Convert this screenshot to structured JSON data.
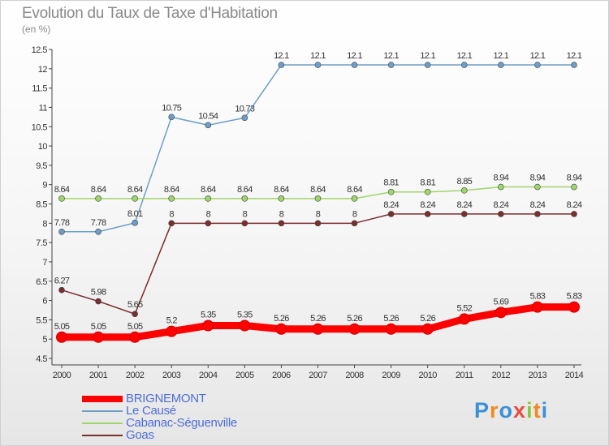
{
  "title": "Evolution du Taux de Taxe d'Habitation",
  "subtitle": "(en %)",
  "logo": {
    "text": "Proxiti"
  },
  "chart_data": {
    "type": "line",
    "title": "Evolution du Taux de Taxe d'Habitation",
    "ylabel": "(en %)",
    "xlabel": "",
    "ylim": [
      4.5,
      12.5
    ],
    "grid": false,
    "legend_placement": "bottom-left",
    "x": [
      "2000",
      "2001",
      "2002",
      "2003",
      "2004",
      "2005",
      "2006",
      "2007",
      "2008",
      "2009",
      "2010",
      "2011",
      "2012",
      "2013",
      "2014"
    ],
    "y_ticks": [
      "4.5",
      "5",
      "5.5",
      "6",
      "6.5",
      "7",
      "7.5",
      "8",
      "8.5",
      "9",
      "9.5",
      "10",
      "10.5",
      "11",
      "11.5",
      "12",
      "12.5"
    ],
    "series": [
      {
        "name": "Le Causé",
        "color": "#6e9ec8",
        "values": [
          7.78,
          7.78,
          8.01,
          10.75,
          10.54,
          10.73,
          12.1,
          12.1,
          12.1,
          12.1,
          12.1,
          12.1,
          12.1,
          12.1,
          12.1
        ],
        "labels": [
          "7.78",
          "7.78",
          "8.01",
          "10.75",
          "10.54",
          "10.73",
          "12.1",
          "12.1",
          "12.1",
          "12.1",
          "12.1",
          "12.1",
          "12.1",
          "12.1",
          "12.1"
        ]
      },
      {
        "name": "Cabanac-Séguenville",
        "color": "#9ed66b",
        "values": [
          8.64,
          8.64,
          8.64,
          8.64,
          8.64,
          8.64,
          8.64,
          8.64,
          8.64,
          8.81,
          8.81,
          8.85,
          8.94,
          8.94,
          8.94
        ],
        "labels": [
          "8.64",
          "8.64",
          "8.64",
          "8.64",
          "8.64",
          "8.64",
          "8.64",
          "8.64",
          "8.64",
          "8.81",
          "8.81",
          "8.85",
          "8.94",
          "8.94",
          "8.94"
        ]
      },
      {
        "name": "Goas",
        "color": "#7a2e2e",
        "values": [
          6.27,
          5.98,
          5.65,
          8,
          8,
          8,
          8,
          8,
          8,
          8.24,
          8.24,
          8.24,
          8.24,
          8.24,
          8.24
        ],
        "labels": [
          "6.27",
          "5.98",
          "5.65",
          "8",
          "8",
          "8",
          "8",
          "8",
          "8",
          "8.24",
          "8.24",
          "8.24",
          "8.24",
          "8.24",
          "8.24"
        ]
      },
      {
        "name": "BRIGNEMONT",
        "color": "#ff0000",
        "values": [
          5.05,
          5.05,
          5.05,
          5.2,
          5.35,
          5.35,
          5.26,
          5.26,
          5.26,
          5.26,
          5.26,
          5.52,
          5.69,
          5.83,
          5.83
        ],
        "labels": [
          "5.05",
          "5.05",
          "5.05",
          "5.2",
          "5.35",
          "5.35",
          "5.26",
          "5.26",
          "5.26",
          "5.26",
          "5.26",
          "5.52",
          "5.69",
          "5.83",
          "5.83"
        ]
      }
    ],
    "legend_order": [
      "BRIGNEMONT",
      "Le Causé",
      "Cabanac-Séguenville",
      "Goas"
    ]
  }
}
